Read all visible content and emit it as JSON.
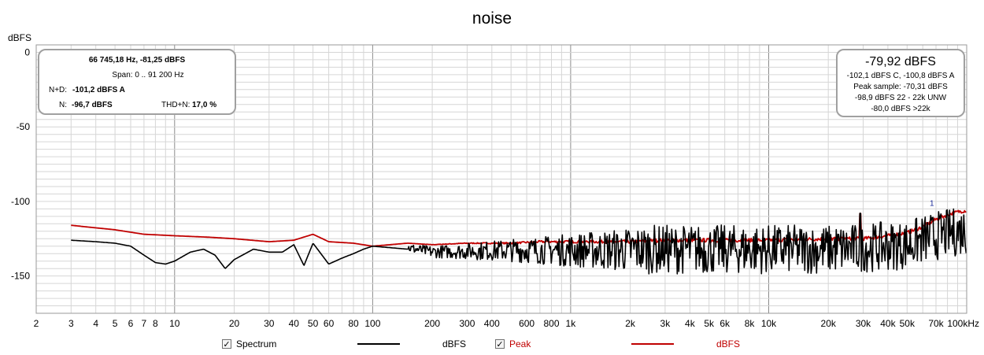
{
  "window": {
    "title": "noise"
  },
  "chart_data": {
    "type": "line",
    "title": "noise",
    "ylabel": "dBFS",
    "xlabel": "",
    "xscale": "log",
    "xlim": [
      2,
      100000
    ],
    "ylim": [
      -175,
      5
    ],
    "grid": true,
    "y_ticks": [
      0,
      -50,
      -100,
      -150
    ],
    "y_tick_labels": [
      "0",
      "-50",
      "-100",
      "-150"
    ],
    "x_ticks": [
      2,
      3,
      4,
      5,
      6,
      7,
      8,
      10,
      20,
      30,
      40,
      50,
      60,
      80,
      100,
      200,
      300,
      400,
      600,
      800,
      1000,
      2000,
      3000,
      4000,
      5000,
      6000,
      8000,
      10000,
      20000,
      30000,
      40000,
      50000,
      70000,
      100000
    ],
    "x_tick_labels": [
      "2",
      "3",
      "4",
      "5",
      "6",
      "7",
      "8",
      "10",
      "20",
      "30",
      "40",
      "50",
      "60",
      "80",
      "100",
      "200",
      "300",
      "400",
      "600",
      "800",
      "1k",
      "2k",
      "3k",
      "4k",
      "5k",
      "6k",
      "8k",
      "10k",
      "20k",
      "30k",
      "40k",
      "50k",
      "70k",
      "100kHz"
    ],
    "series": [
      {
        "name": "Peak",
        "color": "#c00000",
        "x": [
          3,
          5,
          7,
          10,
          15,
          20,
          30,
          40,
          50,
          60,
          80,
          100,
          150,
          200,
          300,
          500,
          700,
          1000,
          2000,
          3000,
          5000,
          10000,
          20000,
          30000,
          40000,
          50000,
          60000,
          70000,
          80000,
          90000,
          100000
        ],
        "values": [
          -116,
          -119,
          -122,
          -123,
          -124,
          -125,
          -127,
          -126,
          -122,
          -127,
          -128,
          -130,
          -128,
          -129,
          -128,
          -128,
          -127,
          -127,
          -127,
          -126,
          -126,
          -126,
          -125,
          -125,
          -123,
          -121,
          -117,
          -112,
          -109,
          -107,
          -106
        ]
      },
      {
        "name": "Spectrum",
        "color": "#000000",
        "x": [
          3,
          4,
          5,
          6,
          7,
          8,
          9,
          10,
          12,
          14,
          16,
          18,
          20,
          25,
          30,
          35,
          40,
          45,
          50,
          60,
          70,
          80,
          90,
          100,
          150,
          200,
          300,
          500,
          1000,
          2000,
          5000,
          10000,
          20000,
          30000,
          50000,
          70000,
          100000
        ],
        "values": [
          -126,
          -127,
          -128,
          -130,
          -136,
          -141,
          -142,
          -140,
          -134,
          -132,
          -136,
          -145,
          -139,
          -132,
          -134,
          -134,
          -129,
          -143,
          -128,
          -142,
          -138,
          -135,
          -132,
          -130,
          -132,
          -135,
          -135,
          -135,
          -136,
          -137,
          -137,
          -137,
          -137,
          -136,
          -134,
          -128,
          -124
        ]
      }
    ],
    "spike": {
      "x": 29000,
      "value": -108
    },
    "marker": {
      "label": "1",
      "x": 66745.18,
      "value": -81.25
    }
  },
  "info_left": {
    "line1": "66 745,18 Hz, -81,25 dBFS",
    "line2": "Span: 0 .. 91 200 Hz",
    "nd_label": "N+D:",
    "nd_value": "-101,2 dBFS A",
    "n_label": "N:",
    "n_value": "-96,7 dBFS",
    "thd_label": "THD+N:",
    "thd_value": "17,0 %"
  },
  "info_right": {
    "big": "-79,92 dBFS",
    "line1": "-102,1 dBFS C, -100,8 dBFS A",
    "line2": "Peak sample: -70,31 dBFS",
    "line3": "-98,9 dBFS 22 - 22k UNW",
    "line4": "-80,0 dBFS >22k"
  },
  "legend": {
    "spectrum_label": "Spectrum",
    "spectrum_unit": "dBFS",
    "peak_label": "Peak",
    "peak_unit": "dBFS",
    "check_mark": "✓",
    "spectrum_color": "#000000",
    "peak_color": "#c00000"
  }
}
